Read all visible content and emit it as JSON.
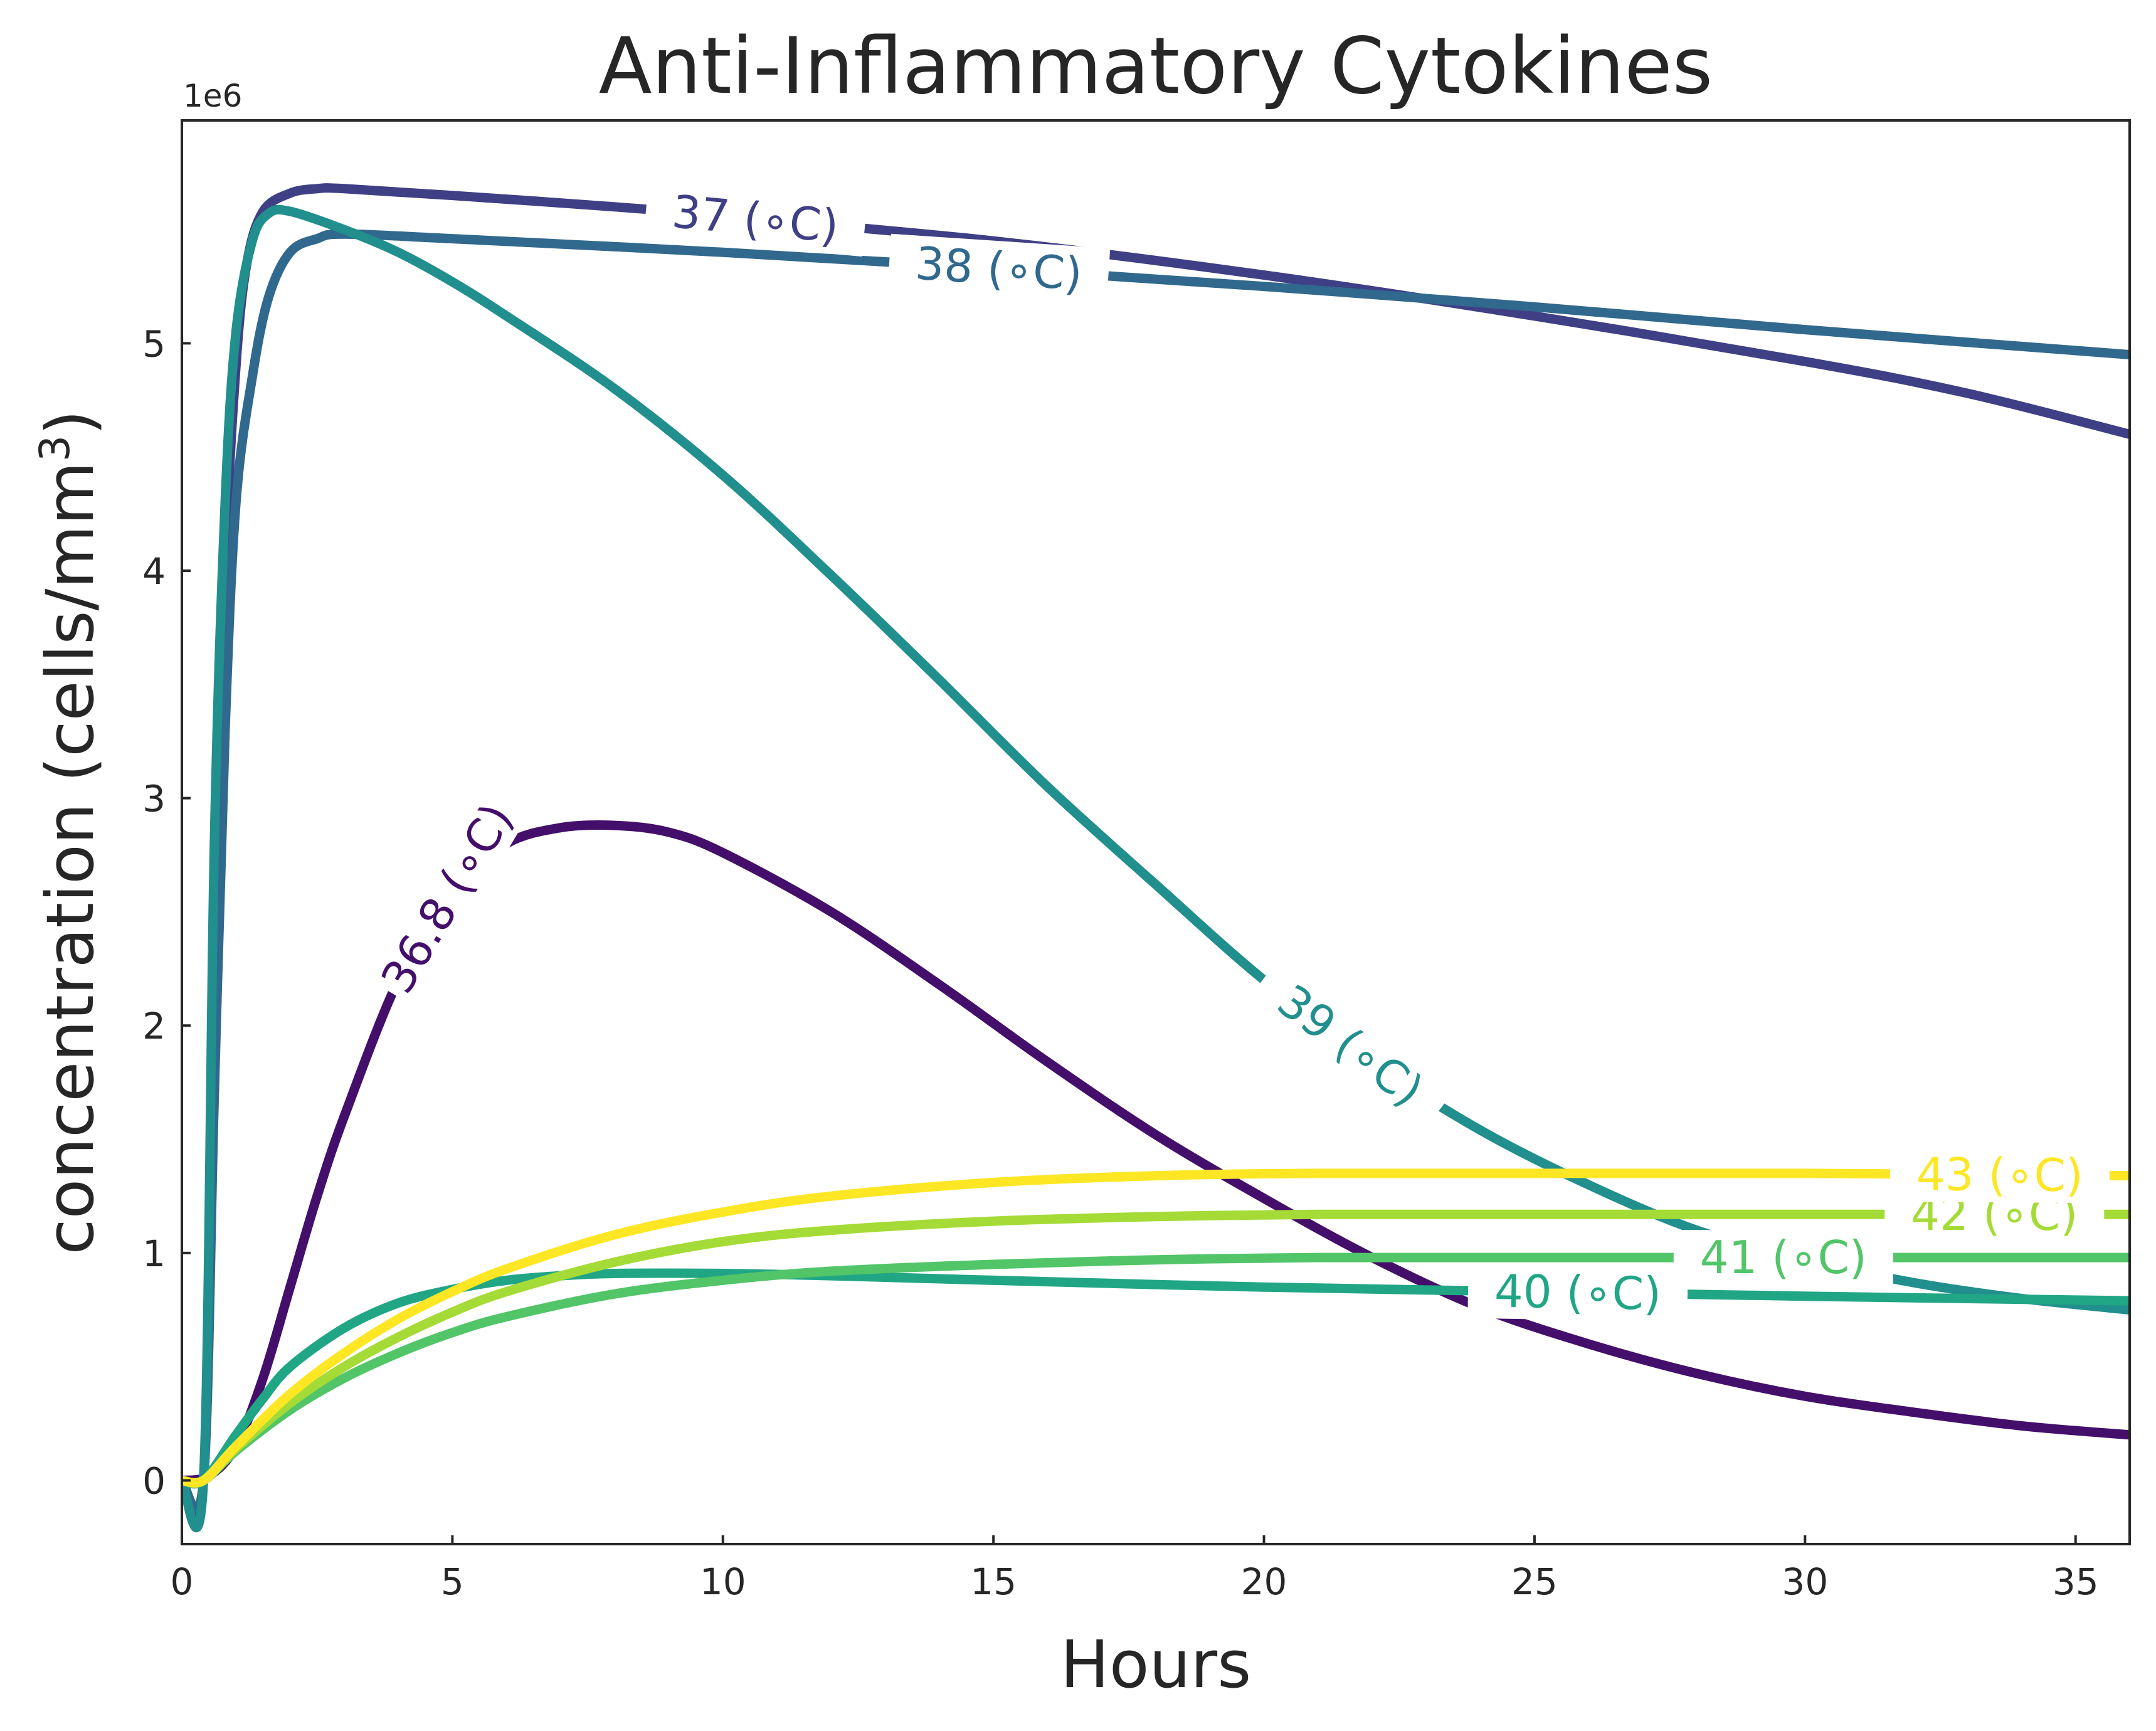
{
  "chart_data": {
    "type": "line",
    "title": "Anti-Inflammatory Cytokines",
    "xlabel": "Hours",
    "ylabel": "concentration (cells/mm",
    "ylabel_sup": "3",
    "ylabel_close": ")",
    "y_offset_text": "1e6",
    "xlim": [
      0,
      36
    ],
    "ylim": [
      -0.28,
      5.98
    ],
    "y_scale_multiplier": 1000000,
    "x_ticks": [
      0,
      5,
      10,
      15,
      20,
      25,
      30,
      35
    ],
    "x_tick_labels": [
      "0",
      "5",
      "10",
      "15",
      "20",
      "25",
      "30",
      "35"
    ],
    "y_ticks": [
      0,
      1,
      2,
      3,
      4,
      5
    ],
    "y_tick_labels": [
      "0",
      "1",
      "2",
      "3",
      "4",
      "5"
    ],
    "grid": false,
    "legend": "none (inline line labels)",
    "series": [
      {
        "name": "36.8 (°C)",
        "label_text": "36.8 (∘C)",
        "color": "#440f6b",
        "x": [
          0,
          0.5,
          1,
          1.5,
          2,
          2.5,
          3,
          4,
          5,
          6,
          7,
          8,
          9,
          10,
          12,
          14,
          16,
          18,
          20,
          22,
          24,
          26,
          28,
          30,
          32,
          34,
          36
        ],
        "y": [
          0,
          0.02,
          0.15,
          0.45,
          0.85,
          1.25,
          1.6,
          2.2,
          2.6,
          2.8,
          2.87,
          2.88,
          2.85,
          2.76,
          2.5,
          2.18,
          1.84,
          1.52,
          1.24,
          0.98,
          0.76,
          0.6,
          0.47,
          0.37,
          0.3,
          0.24,
          0.2
        ]
      },
      {
        "name": "37 (°C)",
        "label_text": "37 (∘C)",
        "color": "#3f3f85",
        "x": [
          0,
          0.4,
          0.6,
          0.8,
          1,
          1.2,
          1.5,
          2,
          2.5,
          3,
          5,
          8,
          10,
          15,
          20,
          25,
          30,
          33,
          36
        ],
        "y": [
          0,
          0,
          2.3,
          4.0,
          4.9,
          5.35,
          5.58,
          5.66,
          5.68,
          5.68,
          5.65,
          5.6,
          5.56,
          5.45,
          5.3,
          5.12,
          4.92,
          4.78,
          4.6
        ]
      },
      {
        "name": "38 (°C)",
        "label_text": "38 (∘C)",
        "color": "#31688e",
        "x": [
          0,
          0.4,
          0.6,
          0.8,
          1,
          1.3,
          1.6,
          2,
          2.5,
          3,
          5,
          10,
          15,
          20,
          25,
          30,
          36
        ],
        "y": [
          0,
          0,
          1.7,
          3.3,
          4.3,
          4.85,
          5.2,
          5.4,
          5.46,
          5.48,
          5.46,
          5.4,
          5.33,
          5.25,
          5.16,
          5.06,
          4.95
        ]
      },
      {
        "name": "39 (°C)",
        "label_text": "39 (∘C)",
        "color": "#218f8d",
        "x": [
          0,
          0.4,
          0.6,
          0.8,
          1,
          1.3,
          1.6,
          2,
          3,
          4,
          5,
          6,
          8,
          10,
          12,
          14,
          16,
          18,
          20,
          22,
          24,
          26,
          28,
          30,
          32,
          34,
          36
        ],
        "y": [
          0,
          0,
          2.8,
          4.3,
          5.05,
          5.45,
          5.57,
          5.58,
          5.5,
          5.4,
          5.27,
          5.12,
          4.8,
          4.42,
          3.98,
          3.52,
          3.05,
          2.62,
          2.2,
          1.84,
          1.54,
          1.3,
          1.1,
          0.97,
          0.87,
          0.8,
          0.75
        ]
      },
      {
        "name": "40 (°C)",
        "label_text": "40 (∘C)",
        "color": "#21a685",
        "x": [
          0,
          0.4,
          1,
          1.5,
          2,
          3,
          4,
          5,
          6,
          7,
          8,
          10,
          12,
          15,
          20,
          25,
          30,
          36
        ],
        "y": [
          0,
          0,
          0.2,
          0.36,
          0.5,
          0.67,
          0.78,
          0.84,
          0.88,
          0.9,
          0.91,
          0.91,
          0.9,
          0.88,
          0.85,
          0.83,
          0.81,
          0.79
        ]
      },
      {
        "name": "41 (°C)",
        "label_text": "41 (∘C)",
        "color": "#52c569",
        "x": [
          0,
          0.4,
          1,
          2,
          3,
          4,
          5,
          6,
          8,
          10,
          12,
          15,
          18,
          21,
          25,
          30,
          36
        ],
        "y": [
          0,
          0,
          0.13,
          0.31,
          0.45,
          0.56,
          0.65,
          0.72,
          0.82,
          0.88,
          0.92,
          0.95,
          0.97,
          0.98,
          0.98,
          0.98,
          0.98
        ]
      },
      {
        "name": "42 (°C)",
        "label_text": "42 (∘C)",
        "color": "#a5db36",
        "x": [
          0,
          0.4,
          1,
          2,
          3,
          4,
          5,
          6,
          8,
          10,
          12,
          15,
          18,
          21,
          25,
          30,
          36
        ],
        "y": [
          0,
          0,
          0.14,
          0.34,
          0.5,
          0.63,
          0.74,
          0.83,
          0.96,
          1.05,
          1.1,
          1.14,
          1.16,
          1.17,
          1.17,
          1.17,
          1.17
        ]
      },
      {
        "name": "43 (°C)",
        "label_text": "43 (∘C)",
        "color": "#fde725",
        "x": [
          0,
          0.4,
          1,
          2,
          3,
          4,
          5,
          6,
          8,
          10,
          12,
          15,
          18,
          21,
          25,
          30,
          36
        ],
        "y": [
          0,
          0,
          0.15,
          0.38,
          0.56,
          0.71,
          0.83,
          0.93,
          1.08,
          1.18,
          1.25,
          1.31,
          1.34,
          1.35,
          1.35,
          1.35,
          1.34
        ]
      }
    ]
  }
}
